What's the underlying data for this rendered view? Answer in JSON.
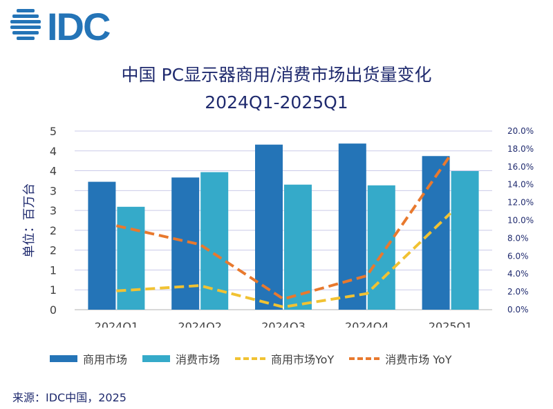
{
  "header": {
    "logo_text": "IDC",
    "title_line1": "中国 PC显示器商用/消费市场出货量变化",
    "title_line2": "2024Q1-2025Q1"
  },
  "colors": {
    "commercial": "#2474b7",
    "consumer": "#35aac9",
    "commercial_yoy": "#f1c232",
    "consumer_yoy": "#e8792e",
    "title": "#1f2a6e"
  },
  "chart_data": {
    "type": "bar",
    "categories": [
      "2024Q1",
      "2024Q2",
      "2024Q3",
      "2024Q4",
      "2025Q1"
    ],
    "series": [
      {
        "name": "商用市场",
        "type": "bar",
        "axis": "left",
        "values": [
          3.58,
          3.7,
          4.62,
          4.65,
          4.3
        ]
      },
      {
        "name": "消费市场",
        "type": "bar",
        "axis": "left",
        "values": [
          2.88,
          3.85,
          3.5,
          3.48,
          3.88
        ]
      },
      {
        "name": "商用市场YoY",
        "type": "line",
        "axis": "right",
        "values": [
          2.1,
          2.7,
          0.3,
          1.8,
          10.8
        ]
      },
      {
        "name": "消费市场 YoY",
        "type": "line",
        "axis": "right",
        "values": [
          9.4,
          7.3,
          1.2,
          3.8,
          17.3
        ]
      }
    ],
    "ylabel": "单位：百万台",
    "y_left": {
      "ylim": [
        0,
        5
      ],
      "tick_labels": [
        "0",
        "1",
        "1",
        "2",
        "2",
        "3",
        "3",
        "4",
        "4",
        "5"
      ]
    },
    "y_right": {
      "ylim": [
        0,
        20
      ],
      "tick_labels": [
        "0.0%",
        "2.0%",
        "4.0%",
        "6.0%",
        "8.0%",
        "10.0%",
        "12.0%",
        "14.0%",
        "16.0%",
        "18.0%",
        "20.0%"
      ]
    },
    "grid": true,
    "legend_position": "bottom"
  },
  "source": "来源：IDC中国，2025"
}
